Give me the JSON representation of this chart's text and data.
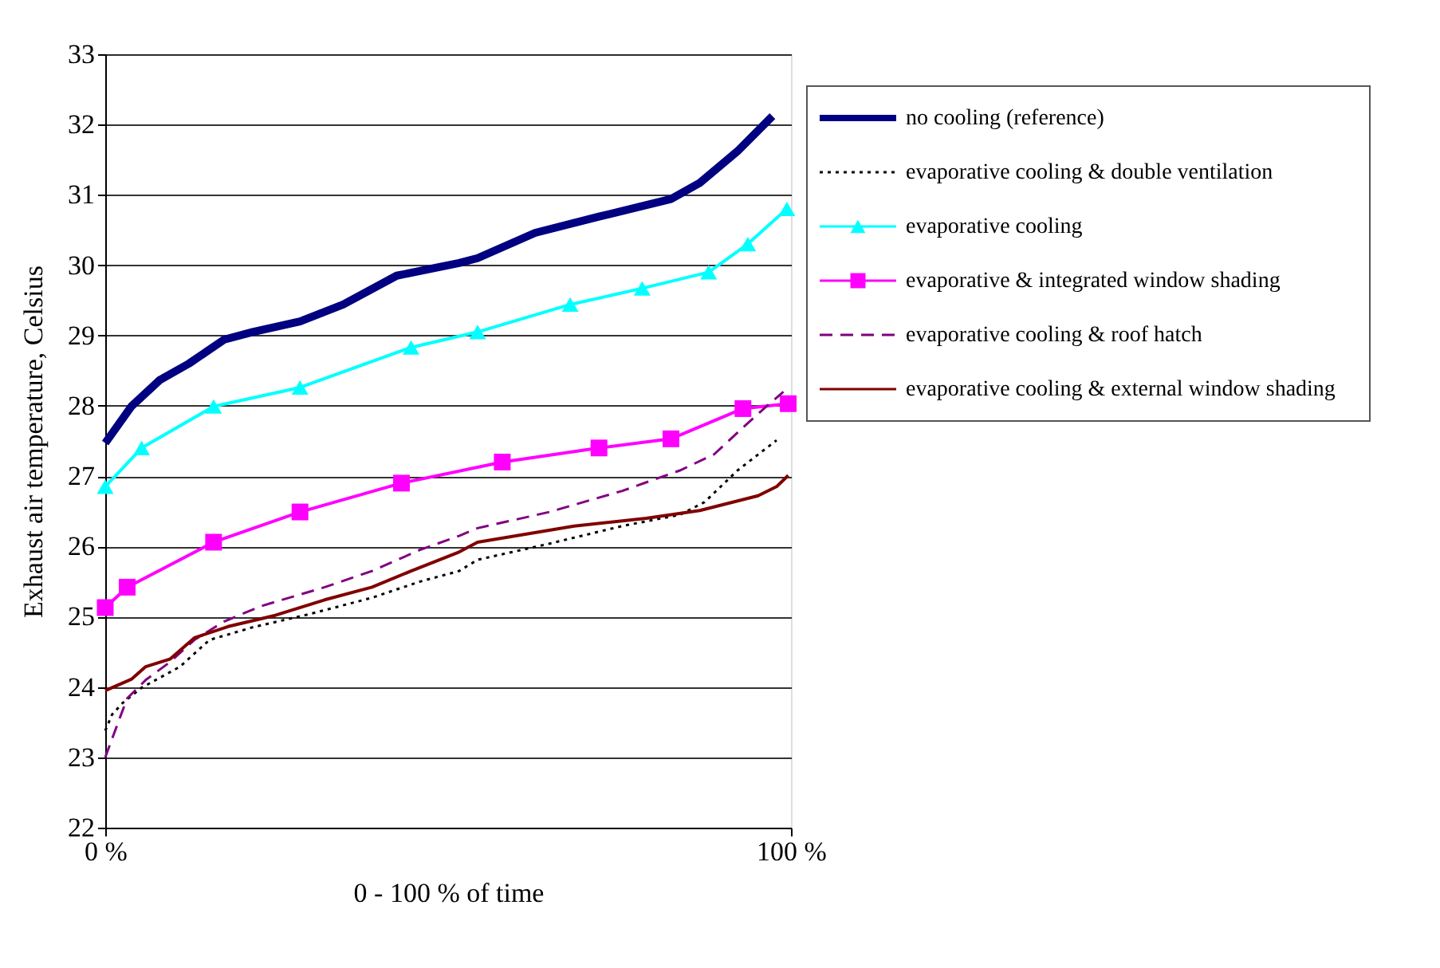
{
  "chart_data": {
    "type": "line",
    "xlabel": "0 - 100 % of time",
    "ylabel": "Exhaust air temperature, Celsius",
    "xlim": [
      0,
      100
    ],
    "xticks": [
      {
        "value": 0,
        "label": "0 %"
      },
      {
        "value": 100,
        "label": "100 %"
      }
    ],
    "ylim": [
      22,
      33
    ],
    "yticks": [
      22,
      23,
      24,
      25,
      26,
      27,
      28,
      29,
      30,
      31,
      32,
      33
    ],
    "grid": "y",
    "legend": "right",
    "series": [
      {
        "name": "no cooling (reference)",
        "color": "#000080",
        "marker": "none",
        "line_style": "solid",
        "x": [
          0,
          3.8,
          8,
          12.2,
          17.3,
          21.5,
          28.4,
          34.7,
          42.5,
          51.6,
          54.3,
          62.7,
          72,
          82.5,
          86.7,
          92.2,
          97.3
        ],
        "values": [
          27.47,
          27.99,
          28.37,
          28.6,
          28.94,
          29.05,
          29.2,
          29.44,
          29.85,
          30.03,
          30.1,
          30.46,
          30.69,
          30.94,
          31.17,
          31.62,
          32.12
        ]
      },
      {
        "name": "evaporative cooling & double ventilation",
        "color": "#000000",
        "marker": "none",
        "line_style": "dotted",
        "x": [
          0,
          1,
          2.5,
          5.3,
          10.9,
          15.2,
          21.5,
          29.9,
          38.9,
          45.9,
          51.6,
          54.3,
          64.8,
          75.4,
          83.8,
          87.4,
          92.2,
          97.9
        ],
        "values": [
          23.38,
          23.61,
          23.77,
          23.99,
          24.29,
          24.67,
          24.85,
          25.04,
          25.27,
          25.5,
          25.65,
          25.81,
          26.04,
          26.29,
          26.45,
          26.63,
          27.08,
          27.51
        ]
      },
      {
        "name": "evaporative cooling",
        "color": "#00ffff",
        "marker": "triangle",
        "line_style": "solid",
        "x": [
          0,
          5.3,
          15.8,
          28.4,
          44.6,
          54.3,
          67.8,
          78.3,
          88,
          93.7,
          99.4
        ],
        "values": [
          26.85,
          27.4,
          27.99,
          28.26,
          28.83,
          29.05,
          29.44,
          29.67,
          29.9,
          30.3,
          30.8
        ]
      },
      {
        "name": "evaporative & integrated window shading",
        "color": "#ff00ff",
        "marker": "square",
        "line_style": "solid",
        "x": [
          0,
          3.2,
          15.8,
          28.4,
          43.2,
          57.9,
          72,
          82.5,
          93,
          99.6
        ],
        "values": [
          25.13,
          25.42,
          26.06,
          26.49,
          26.9,
          27.2,
          27.4,
          27.53,
          27.96,
          28.03
        ]
      },
      {
        "name": "evaporative cooling & roof hatch",
        "color": "#800080",
        "marker": "none",
        "line_style": "dashed",
        "x": [
          0,
          1.7,
          3.2,
          5.9,
          9.5,
          13,
          17.3,
          22.7,
          32,
          38.9,
          45.9,
          51.6,
          54.3,
          64.8,
          75.4,
          83.8,
          88.8,
          93,
          96.4,
          98.9
        ],
        "values": [
          23.0,
          23.45,
          23.84,
          24.1,
          24.36,
          24.67,
          24.93,
          25.15,
          25.42,
          25.65,
          25.95,
          26.15,
          26.26,
          26.49,
          26.79,
          27.08,
          27.31,
          27.69,
          27.99,
          28.2
        ]
      },
      {
        "name": "evaporative cooling & external window shading",
        "color": "#800000",
        "marker": "none",
        "line_style": "solid",
        "x": [
          0,
          3.8,
          5.9,
          9.5,
          13,
          17.9,
          24.8,
          32,
          38.9,
          44.6,
          51.6,
          54.3,
          68.4,
          78.9,
          86.7,
          95.2,
          97.9,
          99.6
        ],
        "values": [
          23.95,
          24.11,
          24.29,
          24.4,
          24.7,
          24.86,
          25.02,
          25.24,
          25.42,
          25.65,
          25.92,
          26.06,
          26.29,
          26.4,
          26.51,
          26.72,
          26.85,
          27.01
        ]
      }
    ]
  }
}
